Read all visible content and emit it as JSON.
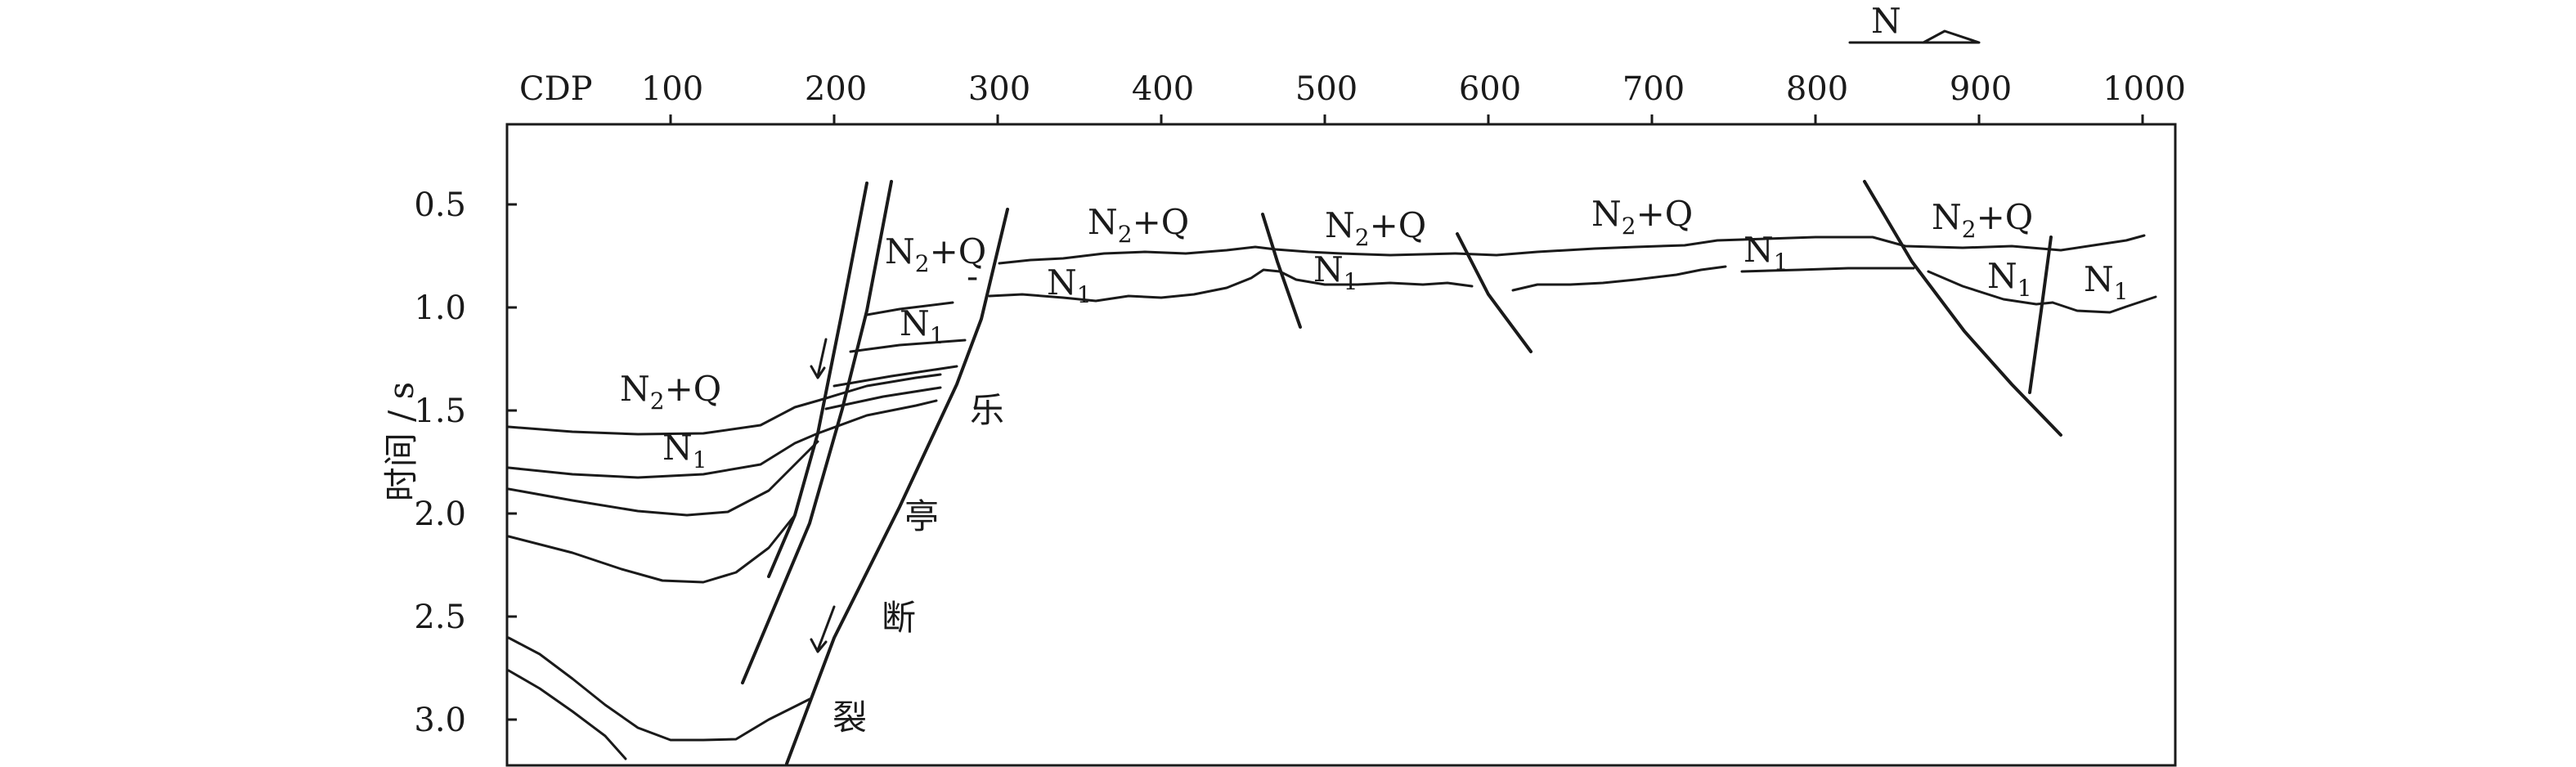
{
  "header": {
    "x_label": "CDP"
  },
  "cdp_ticks": [
    "100",
    "200",
    "300",
    "400",
    "500",
    "600",
    "700",
    "800",
    "900",
    "1000"
  ],
  "time_ticks": [
    "0.5",
    "1.0",
    "1.5",
    "2.0",
    "2.5",
    "3.0"
  ],
  "y_axis": {
    "title": "时间 / s"
  },
  "north": {
    "label": "N"
  },
  "fault_name": {
    "chars": [
      "乐",
      "亭",
      "断",
      "裂"
    ]
  },
  "labels": {
    "n2q_left": {
      "main": "N",
      "sub": "2",
      "rest": "+Q"
    },
    "n1_left": {
      "main": "N",
      "sub": "1"
    },
    "n2q_block": {
      "main": "N",
      "sub": "2",
      "rest": "+Q"
    },
    "n1_block": {
      "main": "N",
      "sub": "1"
    },
    "minus_mark": "-",
    "n2q_1": {
      "main": "N",
      "sub": "2",
      "rest": "+Q"
    },
    "n1_1": {
      "main": "N",
      "sub": "1"
    },
    "n2q_2": {
      "main": "N",
      "sub": "2",
      "rest": "+Q"
    },
    "n1_2": {
      "main": "N",
      "sub": "1"
    },
    "n2q_3": {
      "main": "N",
      "sub": "2",
      "rest": "+Q"
    },
    "n1_3": {
      "main": "N",
      "sub": "1"
    },
    "n2q_4": {
      "main": "N",
      "sub": "2",
      "rest": "+Q"
    },
    "n1_4": {
      "main": "N",
      "sub": "1"
    },
    "n1_5": {
      "main": "N",
      "sub": "1"
    }
  }
}
